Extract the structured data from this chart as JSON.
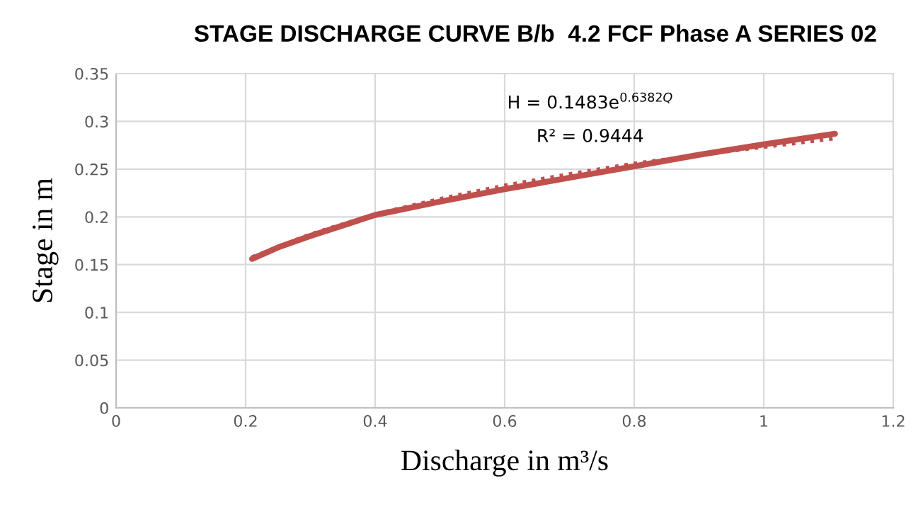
{
  "chart_data": {
    "type": "line",
    "title": "STAGE DISCHARGE CURVE B/b  4.2 FCF Phase A SERIES 02",
    "xlabel": "Discharge in m³/s",
    "ylabel": "Stage in m",
    "series": [
      {
        "color": "#c0504d",
        "line_style": "solid",
        "x": [
          0.21,
          0.25,
          0.3,
          0.4,
          0.5,
          0.6,
          0.7,
          0.8,
          0.9,
          1.0,
          1.11
        ],
        "values": [
          0.156,
          0.168,
          0.18,
          0.202,
          0.216,
          0.229,
          0.241,
          0.253,
          0.265,
          0.276,
          0.287
        ]
      },
      {
        "type": "line",
        "color": "#c0504d",
        "line_style": "dotted",
        "x": [
          0.21,
          0.3,
          0.4,
          0.5,
          0.6,
          0.7,
          0.8,
          0.9,
          1.0,
          1.11
        ],
        "values": [
          0.158,
          0.182,
          0.203,
          0.219,
          0.233,
          0.245,
          0.256,
          0.265,
          0.273,
          0.282
        ]
      }
    ],
    "annotations": [
      "H = 0.1483e$^{0.6382Q}$",
      "R² = 0.9444"
    ],
    "xlim": [
      0,
      1.2
    ],
    "xticks": [
      0,
      0.2,
      0.4,
      0.6,
      0.8,
      1,
      1.2
    ],
    "ylim": [
      0,
      0.35
    ],
    "yticks": [
      0,
      0.05,
      0.1,
      0.15,
      0.2,
      0.25,
      0.3,
      0.35
    ],
    "grid": true,
    "marker": "none"
  }
}
